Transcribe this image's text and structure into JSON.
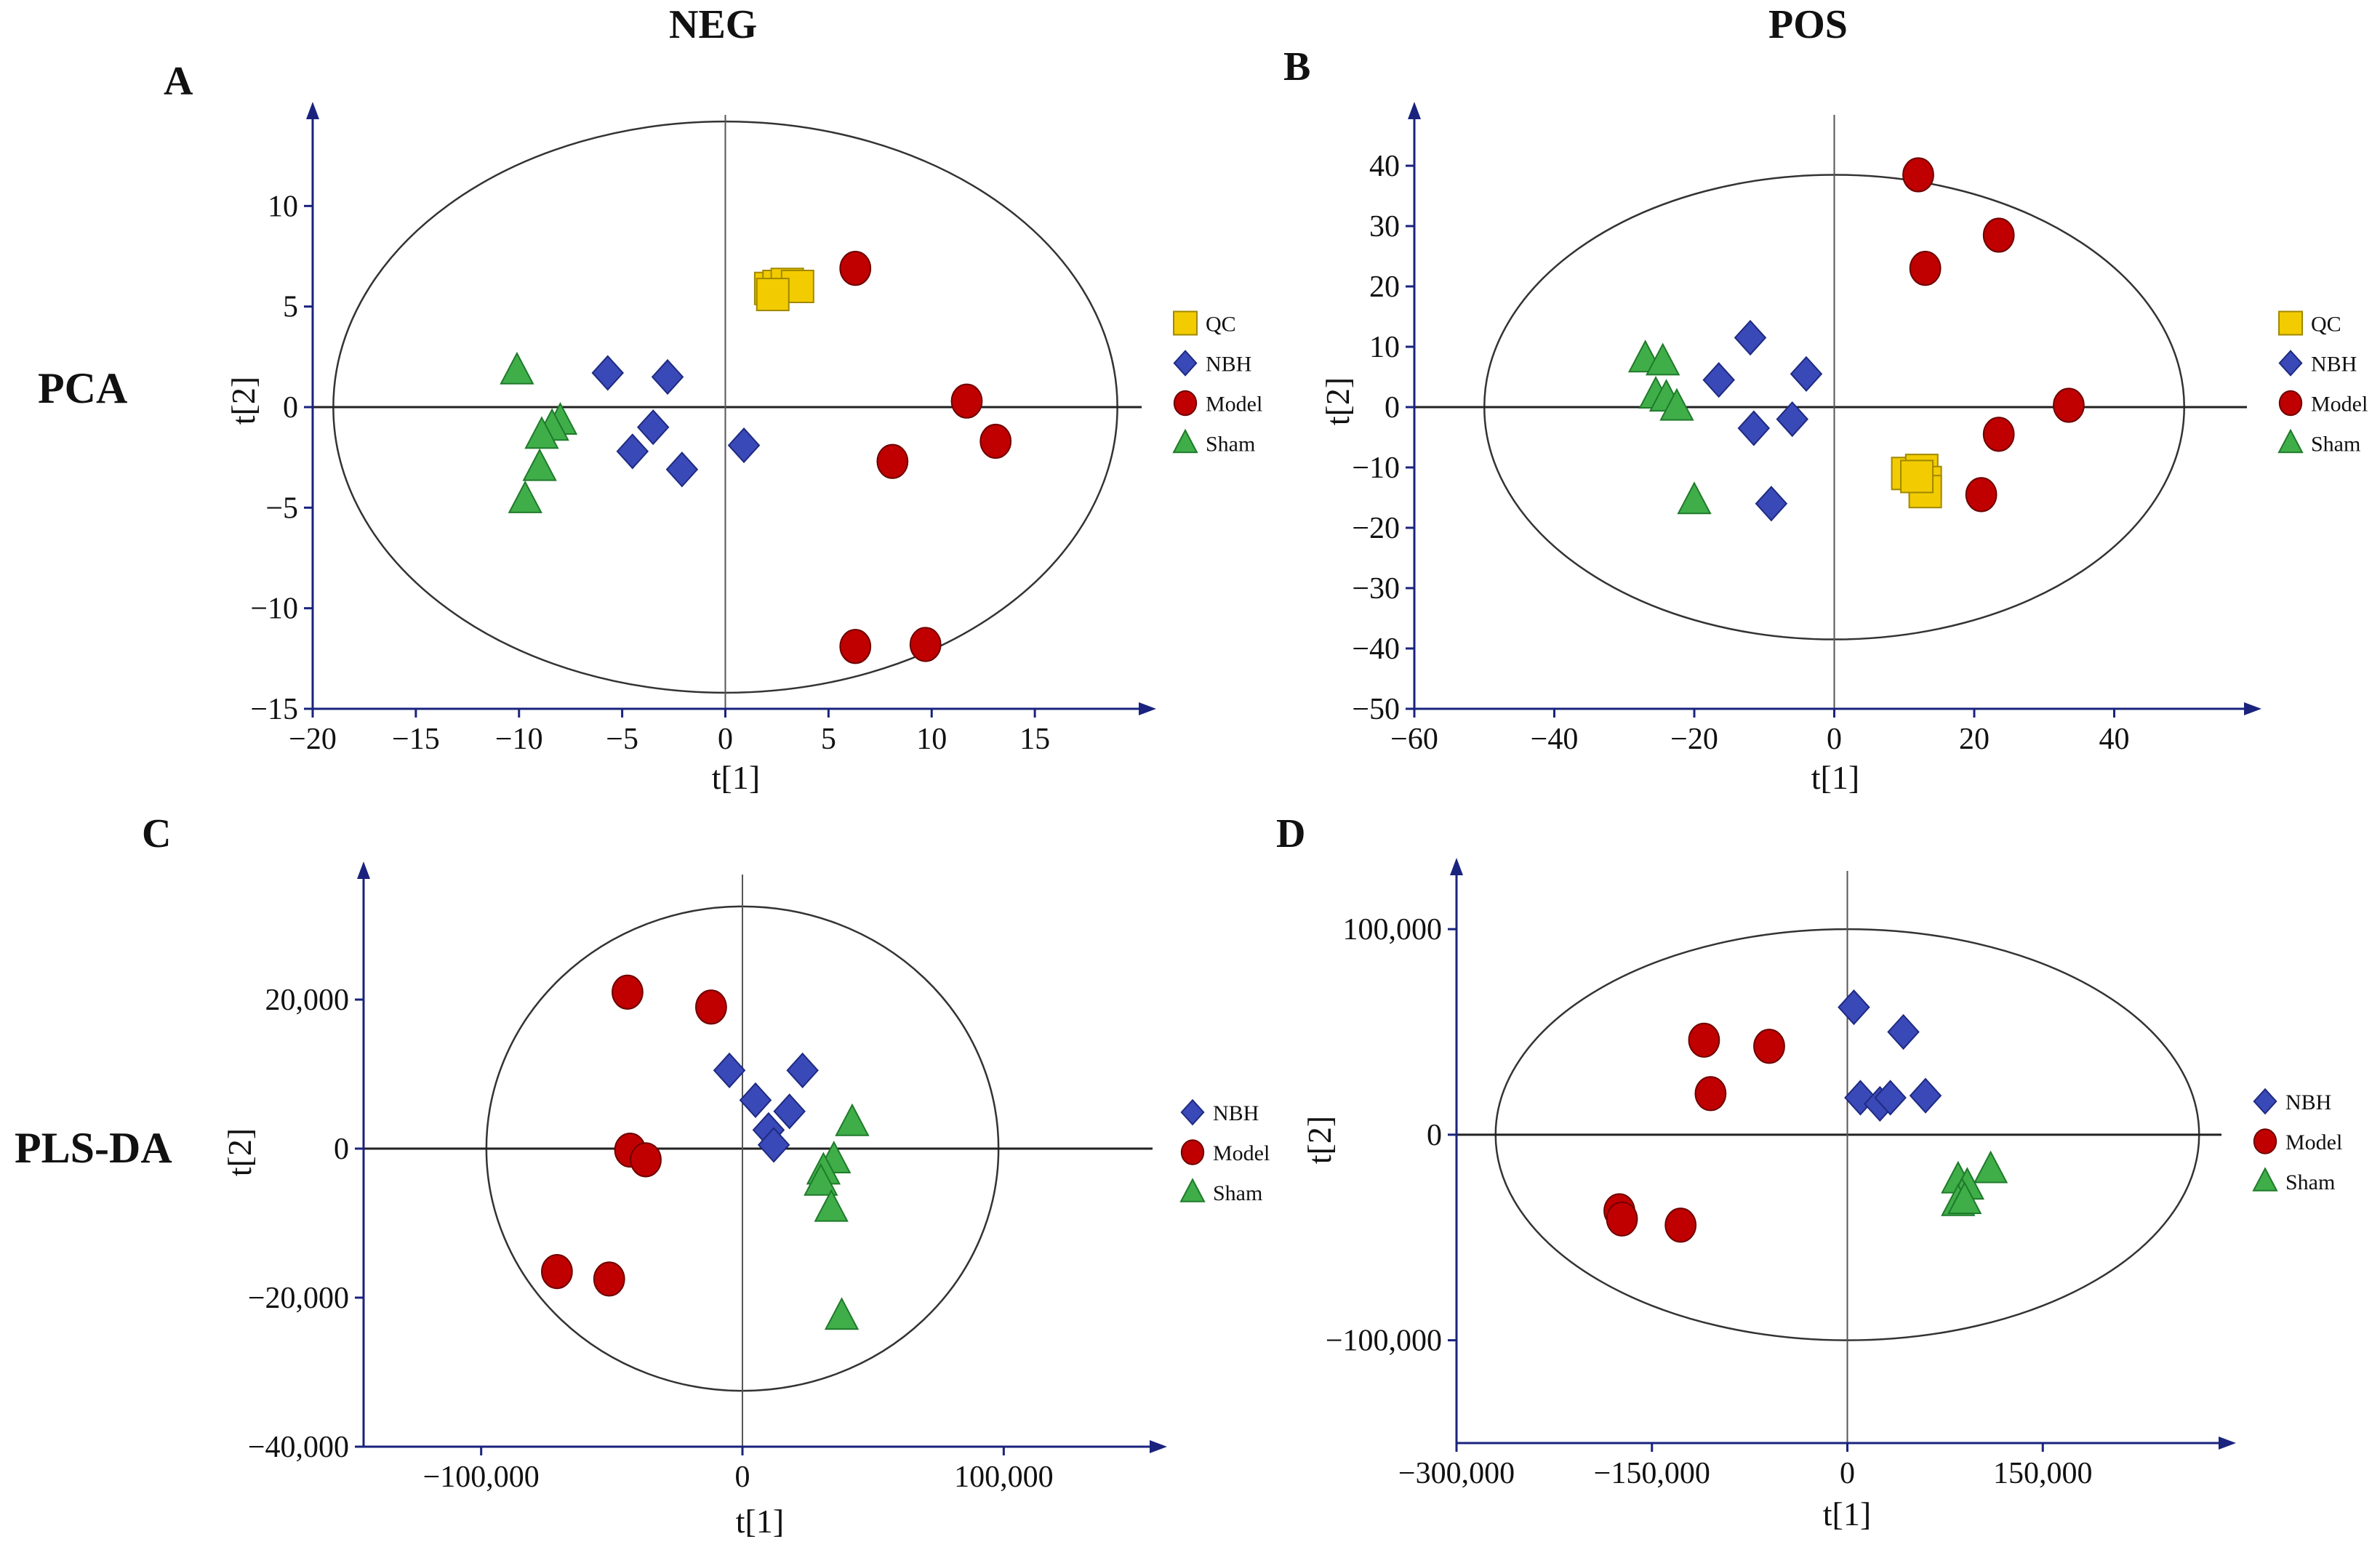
{
  "column_headers": {
    "left": "NEG",
    "right": "POS"
  },
  "row_labels": {
    "top": "PCA",
    "bottom": "PLS-DA"
  },
  "legend_colors": {
    "QC": "#f2cc00",
    "NBH": "#3a49b8",
    "Model": "#c00000",
    "Sham": "#3fae49"
  },
  "chart_data": [
    {
      "type": "scatter",
      "panel": "A",
      "title": "NEG",
      "xlabel": "t[1]",
      "ylabel": "t[2]",
      "xlim": [
        -20,
        20
      ],
      "ylim": [
        -15,
        15
      ],
      "xticks": [
        -20,
        -15,
        -10,
        -5,
        0,
        5,
        10,
        15
      ],
      "xtick_labels": [
        "−20",
        "−15",
        "−10",
        "−5",
        "0",
        "5",
        "10",
        "15"
      ],
      "yticks": [
        -15,
        -10,
        -5,
        0,
        5,
        10
      ],
      "ytick_labels": [
        "−15",
        "−10",
        "−5",
        "0",
        "5",
        "10"
      ],
      "ellipse": {
        "rx": 19,
        "ry": 14.2
      },
      "legend": [
        "QC",
        "NBH",
        "Model",
        "Sham"
      ],
      "series": [
        {
          "name": "QC",
          "marker": "square",
          "points": [
            [
              2.2,
              5.9
            ],
            [
              2.6,
              6.0
            ],
            [
              3.0,
              6.1
            ],
            [
              3.5,
              6.0
            ],
            [
              2.3,
              5.6
            ]
          ]
        },
        {
          "name": "NBH",
          "marker": "diamond",
          "points": [
            [
              -5.7,
              1.7
            ],
            [
              -2.8,
              1.5
            ],
            [
              -3.5,
              -1.0
            ],
            [
              -4.5,
              -2.2
            ],
            [
              -2.1,
              -3.1
            ],
            [
              0.9,
              -1.9
            ]
          ]
        },
        {
          "name": "Model",
          "marker": "circle",
          "points": [
            [
              6.3,
              6.9
            ],
            [
              11.7,
              0.3
            ],
            [
              13.1,
              -1.7
            ],
            [
              8.1,
              -2.7
            ],
            [
              6.3,
              -11.9
            ],
            [
              9.7,
              -11.8
            ]
          ]
        },
        {
          "name": "Sham",
          "marker": "triangle",
          "points": [
            [
              -10.1,
              1.8
            ],
            [
              -8.0,
              -0.7
            ],
            [
              -8.4,
              -1.0
            ],
            [
              -8.9,
              -1.4
            ],
            [
              -9.0,
              -3.0
            ],
            [
              -9.7,
              -4.6
            ]
          ]
        }
      ]
    },
    {
      "type": "scatter",
      "panel": "B",
      "title": "POS",
      "xlabel": "t[1]",
      "ylabel": "t[2]",
      "xlim": [
        -60,
        60
      ],
      "ylim": [
        -50,
        50
      ],
      "xticks": [
        -60,
        -40,
        -20,
        0,
        20,
        40
      ],
      "xtick_labels": [
        "−60",
        "−40",
        "−20",
        "0",
        "20",
        "40"
      ],
      "yticks": [
        -50,
        -40,
        -30,
        -20,
        -10,
        0,
        10,
        20,
        30,
        40
      ],
      "ytick_labels": [
        "−50",
        "−40",
        "−30",
        "−20",
        "−10",
        "0",
        "10",
        "20",
        "30",
        "40"
      ],
      "ellipse": {
        "rx": 50,
        "ry": 38.5
      },
      "legend": [
        "QC",
        "NBH",
        "Model",
        "Sham"
      ],
      "series": [
        {
          "name": "QC",
          "marker": "square",
          "points": [
            [
              10.5,
              -11.0
            ],
            [
              12.5,
              -10.5
            ],
            [
              13.0,
              -12.5
            ],
            [
              13.0,
              -14.0
            ],
            [
              11.8,
              -11.5
            ]
          ]
        },
        {
          "name": "NBH",
          "marker": "diamond",
          "points": [
            [
              -16.5,
              4.5
            ],
            [
              -12.0,
              11.5
            ],
            [
              -4.0,
              5.5
            ],
            [
              -11.5,
              -3.5
            ],
            [
              -6.0,
              -2.0
            ],
            [
              -9.0,
              -16.0
            ]
          ]
        },
        {
          "name": "Model",
          "marker": "circle",
          "points": [
            [
              12.0,
              38.5
            ],
            [
              23.5,
              28.5
            ],
            [
              13.0,
              23.0
            ],
            [
              33.5,
              0.3
            ],
            [
              23.5,
              -4.5
            ],
            [
              21.0,
              -14.5
            ]
          ]
        },
        {
          "name": "Sham",
          "marker": "triangle",
          "points": [
            [
              -27.0,
              8.0
            ],
            [
              -24.5,
              7.5
            ],
            [
              -25.5,
              2.0
            ],
            [
              -24.0,
              1.5
            ],
            [
              -22.5,
              0.0
            ],
            [
              -20.0,
              -15.5
            ]
          ]
        }
      ]
    },
    {
      "type": "scatter",
      "panel": "C",
      "xlabel": "t[1]",
      "ylabel": "t[2]",
      "xlim": [
        -145000,
        150000
      ],
      "ylim": [
        -40000,
        40000
      ],
      "xticks": [
        -100000,
        0,
        100000
      ],
      "xtick_labels": [
        "−100,000",
        "0",
        "100,000"
      ],
      "yticks": [
        -40000,
        -20000,
        0,
        20000
      ],
      "ytick_labels": [
        "−40,000",
        "−20,000",
        "0",
        "20,000"
      ],
      "ellipse": {
        "rx": 98000,
        "ry": 32500
      },
      "legend": [
        "NBH",
        "Model",
        "Sham"
      ],
      "series": [
        {
          "name": "NBH",
          "marker": "diamond",
          "points": [
            [
              -5000,
              10500
            ],
            [
              23000,
              10500
            ],
            [
              5000,
              6500
            ],
            [
              18000,
              5000
            ],
            [
              10000,
              2500
            ],
            [
              12000,
              500
            ]
          ]
        },
        {
          "name": "Model",
          "marker": "circle",
          "points": [
            [
              -44000,
              21000
            ],
            [
              -12000,
              19000
            ],
            [
              -43000,
              -200
            ],
            [
              -37000,
              -1500
            ],
            [
              -71000,
              -16500
            ],
            [
              -51000,
              -17500
            ]
          ]
        },
        {
          "name": "Sham",
          "marker": "triangle",
          "points": [
            [
              42000,
              3500
            ],
            [
              35000,
              -1500
            ],
            [
              31000,
              -3000
            ],
            [
              30000,
              -4500
            ],
            [
              34000,
              -8000
            ],
            [
              38000,
              -22500
            ]
          ]
        }
      ]
    },
    {
      "type": "scatter",
      "panel": "D",
      "xlabel": "t[1]",
      "ylabel": "t[2]",
      "xlim": [
        -300000,
        300000
      ],
      "ylim": [
        -150000,
        140000
      ],
      "xticks": [
        -300000,
        -150000,
        0,
        150000
      ],
      "xtick_labels": [
        "−300,000",
        "−150,000",
        "0",
        "150,000"
      ],
      "yticks": [
        -100000,
        0,
        100000
      ],
      "ytick_labels": [
        "−100,000",
        "0",
        "100,000"
      ],
      "ellipse": {
        "rx": 270000,
        "ry": 100000
      },
      "legend": [
        "NBH",
        "Model",
        "Sham"
      ],
      "series": [
        {
          "name": "NBH",
          "marker": "diamond",
          "points": [
            [
              5000,
              62000
            ],
            [
              43000,
              50000
            ],
            [
              10000,
              18000
            ],
            [
              25000,
              15000
            ],
            [
              33000,
              18000
            ],
            [
              60000,
              19000
            ]
          ]
        },
        {
          "name": "Model",
          "marker": "circle",
          "points": [
            [
              -110000,
              46000
            ],
            [
              -60000,
              43000
            ],
            [
              -105000,
              20000
            ],
            [
              -175000,
              -37000
            ],
            [
              -173000,
              -41000
            ],
            [
              -128000,
              -44000
            ]
          ]
        },
        {
          "name": "Sham",
          "marker": "triangle",
          "points": [
            [
              110000,
              -17000
            ],
            [
              85000,
              -22000
            ],
            [
              92000,
              -25000
            ],
            [
              88000,
              -30000
            ],
            [
              85000,
              -33000
            ],
            [
              90000,
              -32000
            ]
          ]
        }
      ]
    }
  ]
}
